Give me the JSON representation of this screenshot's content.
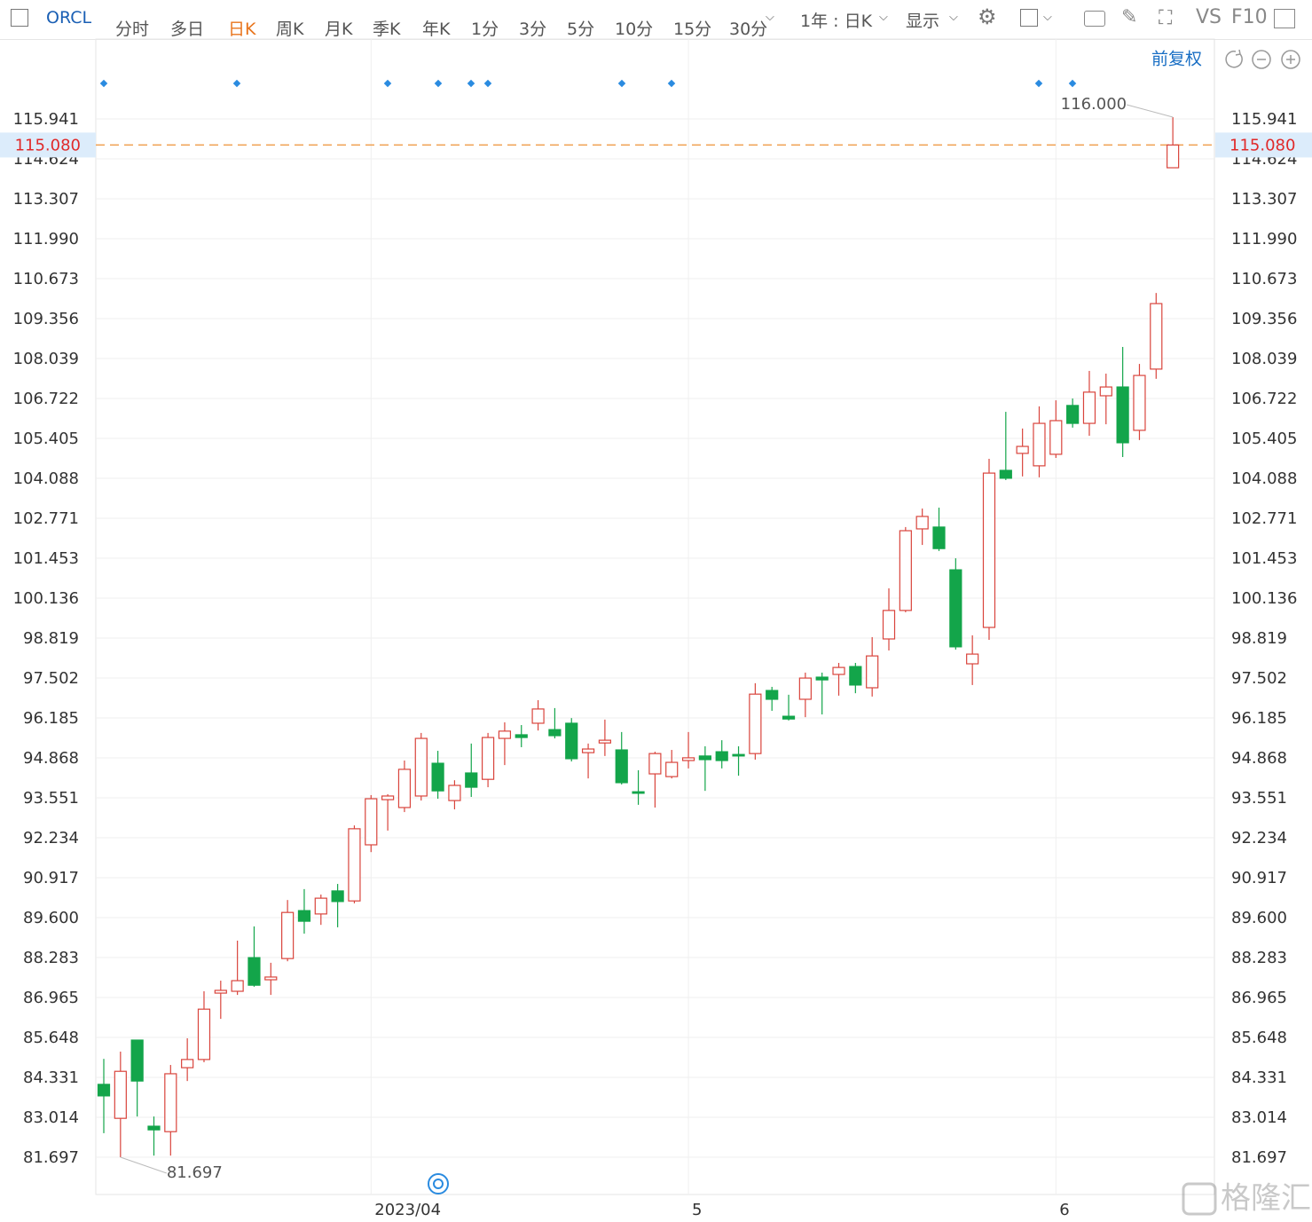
{
  "toolbar": {
    "symbol": "ORCL",
    "periods": [
      "分时",
      "多日",
      "日K",
      "周K",
      "月K",
      "季K",
      "年K",
      "1分",
      "3分",
      "5分",
      "10分",
      "15分",
      "30分"
    ],
    "range": "1年 : 日K",
    "display": "显示",
    "vs": "VS",
    "f10": "F10",
    "adjust": "前复权"
  },
  "watermark": "格隆汇",
  "chart_data": {
    "type": "candlestick",
    "categories": [
      null,
      null,
      null,
      null,
      null,
      null,
      null,
      null,
      null,
      null,
      null,
      null,
      null,
      null,
      null,
      null,
      "2023/04",
      null,
      null,
      null,
      null,
      null,
      null,
      null,
      null,
      null,
      null,
      null,
      null,
      null,
      null,
      null,
      null,
      null,
      null,
      "5",
      null,
      null,
      null,
      null,
      null,
      null,
      null,
      null,
      null,
      null,
      null,
      null,
      null,
      null,
      null,
      null,
      null,
      null,
      null,
      null,
      null,
      "6",
      null,
      null,
      null,
      null,
      null,
      null,
      null
    ],
    "open": [
      84.1,
      82.98,
      85.56,
      82.72,
      82.54,
      84.65,
      84.92,
      87.11,
      87.17,
      88.28,
      87.55,
      88.25,
      89.83,
      89.72,
      90.48,
      90.15,
      92.0,
      93.49,
      93.23,
      93.61,
      94.69,
      93.46,
      94.37,
      94.16,
      95.51,
      95.63,
      96.01,
      95.8,
      96.01,
      95.04,
      95.36,
      95.13,
      93.75,
      94.34,
      94.25,
      94.78,
      94.93,
      95.07,
      94.98,
      95.01,
      97.09,
      96.24,
      96.8,
      97.53,
      97.62,
      97.88,
      97.18,
      98.79,
      99.73,
      102.42,
      102.48,
      101.07,
      97.97,
      99.17,
      104.35,
      104.91,
      104.5,
      104.88,
      106.49,
      105.9,
      106.81,
      107.1,
      105.67,
      107.69,
      114.33
    ],
    "high": [
      84.94,
      85.18,
      85.56,
      83.04,
      84.74,
      85.62,
      87.17,
      87.52,
      88.84,
      89.31,
      88.11,
      90.18,
      90.54,
      90.36,
      90.71,
      92.64,
      93.64,
      93.67,
      94.78,
      95.69,
      95.1,
      94.13,
      95.34,
      95.69,
      96.04,
      95.95,
      96.77,
      96.51,
      96.18,
      95.34,
      96.13,
      95.72,
      94.46,
      95.07,
      95.13,
      95.72,
      95.25,
      95.45,
      95.25,
      97.33,
      97.21,
      96.95,
      97.68,
      97.68,
      98.0,
      98.0,
      98.85,
      100.46,
      102.48,
      103.09,
      103.12,
      101.45,
      98.91,
      104.73,
      106.28,
      105.73,
      106.46,
      106.66,
      106.72,
      107.63,
      107.54,
      108.42,
      107.86,
      110.2,
      116.0
    ],
    "low": [
      82.49,
      81.697,
      83.04,
      81.75,
      81.75,
      84.21,
      84.83,
      86.26,
      87.05,
      87.32,
      87.05,
      88.16,
      89.07,
      89.36,
      89.28,
      90.07,
      91.76,
      92.47,
      93.08,
      93.46,
      93.52,
      93.17,
      93.58,
      93.9,
      94.63,
      95.22,
      95.77,
      95.51,
      94.75,
      94.19,
      94.93,
      93.99,
      93.32,
      93.23,
      94.19,
      94.52,
      93.78,
      94.52,
      94.28,
      94.81,
      96.42,
      96.1,
      96.21,
      96.3,
      96.92,
      97.0,
      96.89,
      98.41,
      99.67,
      101.89,
      101.69,
      98.44,
      97.27,
      98.76,
      104.03,
      104.15,
      104.12,
      104.76,
      105.76,
      105.49,
      105.87,
      104.79,
      105.35,
      107.37,
      114.33
    ],
    "close": [
      83.72,
      84.53,
      84.21,
      82.6,
      84.45,
      84.92,
      86.58,
      87.2,
      87.52,
      87.37,
      87.64,
      89.77,
      89.48,
      90.24,
      90.13,
      92.53,
      93.52,
      93.61,
      94.49,
      95.51,
      93.78,
      93.96,
      93.9,
      95.54,
      95.75,
      95.54,
      96.48,
      95.6,
      94.84,
      95.16,
      95.45,
      94.05,
      93.7,
      95.01,
      94.72,
      94.87,
      94.81,
      94.78,
      94.93,
      96.97,
      96.8,
      96.15,
      97.5,
      97.44,
      97.85,
      97.27,
      98.23,
      99.73,
      102.36,
      102.83,
      101.77,
      98.53,
      98.29,
      104.26,
      104.09,
      105.14,
      105.9,
      105.99,
      105.9,
      106.93,
      107.1,
      105.26,
      107.48,
      109.85,
      115.08
    ],
    "up_color": "#d9443c",
    "down_color": "#13a54a",
    "ylim": [
      80.468,
      117.287
    ],
    "yticks": [
      {
        "value": 81.697,
        "label": "81.697"
      },
      {
        "value": 83.014,
        "label": "83.014"
      },
      {
        "value": 84.331,
        "label": "84.331"
      },
      {
        "value": 85.648,
        "label": "85.648"
      },
      {
        "value": 86.965,
        "label": "86.965"
      },
      {
        "value": 88.283,
        "label": "88.283"
      },
      {
        "value": 89.6,
        "label": "89.600"
      },
      {
        "value": 90.917,
        "label": "90.917"
      },
      {
        "value": 92.234,
        "label": "92.234"
      },
      {
        "value": 93.551,
        "label": "93.551"
      },
      {
        "value": 94.868,
        "label": "94.868"
      },
      {
        "value": 96.185,
        "label": "96.185"
      },
      {
        "value": 97.502,
        "label": "97.502"
      },
      {
        "value": 98.819,
        "label": "98.819"
      },
      {
        "value": 100.136,
        "label": "100.136"
      },
      {
        "value": 101.453,
        "label": "101.453"
      },
      {
        "value": 102.771,
        "label": "102.771"
      },
      {
        "value": 104.088,
        "label": "104.088"
      },
      {
        "value": 105.405,
        "label": "105.405"
      },
      {
        "value": 106.722,
        "label": "106.722"
      },
      {
        "value": 108.039,
        "label": "108.039"
      },
      {
        "value": 109.356,
        "label": "109.356"
      },
      {
        "value": 110.673,
        "label": "110.673"
      },
      {
        "value": 111.99,
        "label": "111.990"
      },
      {
        "value": 113.307,
        "label": "113.307"
      },
      {
        "value": 114.624,
        "label": "114.624"
      },
      {
        "value": 115.941,
        "label": "115.941"
      }
    ],
    "grid": true,
    "price_line": {
      "value": 115.08,
      "label": "115.080",
      "color": "#f0a050"
    },
    "annotations": [
      {
        "value": 116.0,
        "label": "116.000"
      },
      {
        "value": 81.697,
        "label": "81.697"
      }
    ]
  }
}
